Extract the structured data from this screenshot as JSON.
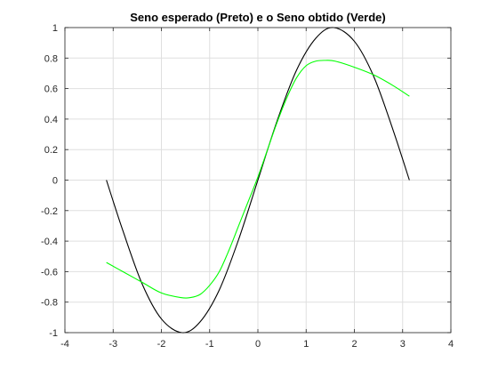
{
  "chart_data": {
    "type": "line",
    "title": "Seno esperado (Preto) e o Seno obtido (Verde)",
    "xlabel": "",
    "ylabel": "",
    "xlim": [
      -4,
      4
    ],
    "ylim": [
      -1,
      1
    ],
    "grid": true,
    "x_ticks": [
      -4,
      -3,
      -2,
      -1,
      0,
      1,
      2,
      3,
      4
    ],
    "x_tick_labels": [
      "-4",
      "-3",
      "-2",
      "-1",
      "0",
      "1",
      "2",
      "3",
      "4"
    ],
    "y_ticks": [
      -1,
      -0.8,
      -0.6,
      -0.4,
      -0.2,
      0,
      0.2,
      0.4,
      0.6,
      0.8,
      1
    ],
    "y_tick_labels": [
      "-1",
      "-0.8",
      "-0.6",
      "-0.4",
      "-0.2",
      "0",
      "0.2",
      "0.4",
      "0.6",
      "0.8",
      "1"
    ],
    "series": [
      {
        "color": "#000000",
        "x": [
          -3.14,
          -2.8,
          -2.4,
          -2.0,
          -1.57,
          -1.2,
          -0.8,
          -0.4,
          0,
          0.4,
          0.8,
          1.2,
          1.57,
          2.0,
          2.4,
          2.8,
          3.14
        ],
        "y": [
          0.0,
          -0.33,
          -0.68,
          -0.91,
          -1.0,
          -0.93,
          -0.72,
          -0.39,
          0.0,
          0.39,
          0.72,
          0.93,
          1.0,
          0.91,
          0.68,
          0.33,
          0.0
        ]
      },
      {
        "color": "#00ff00",
        "x": [
          -3.14,
          -2.8,
          -2.4,
          -2.0,
          -1.6,
          -1.4,
          -1.2,
          -1.0,
          -0.8,
          -0.6,
          -0.4,
          -0.2,
          0,
          0.2,
          0.4,
          0.6,
          0.8,
          1.0,
          1.2,
          1.4,
          1.6,
          2.0,
          2.4,
          2.8,
          3.14
        ],
        "y": [
          -0.54,
          -0.6,
          -0.67,
          -0.74,
          -0.77,
          -0.77,
          -0.75,
          -0.69,
          -0.6,
          -0.46,
          -0.3,
          -0.14,
          0.02,
          0.2,
          0.38,
          0.54,
          0.67,
          0.75,
          0.78,
          0.785,
          0.78,
          0.74,
          0.69,
          0.62,
          0.55
        ]
      }
    ]
  }
}
